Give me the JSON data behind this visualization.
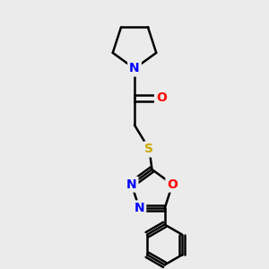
{
  "background_color": "#ebebeb",
  "atom_colors": {
    "C": "#000000",
    "N": "#0000ff",
    "O": "#ff0000",
    "S": "#ccaa00"
  },
  "bond_lw": 1.8,
  "font_size": 10
}
